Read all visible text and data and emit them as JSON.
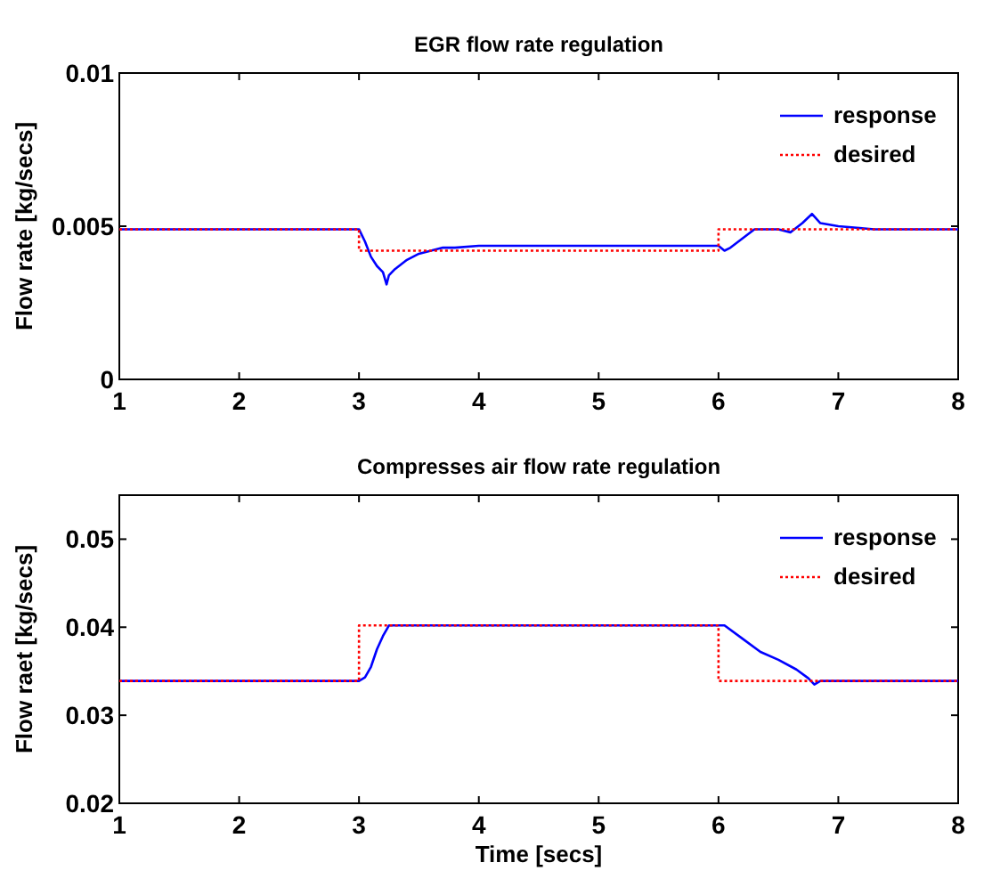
{
  "chart_data": [
    {
      "type": "line",
      "title": "EGR flow rate regulation",
      "ylabel": "Flow rate [kg/secs]",
      "xlim": [
        1,
        8
      ],
      "xticks": [
        1,
        2,
        3,
        4,
        5,
        6,
        7,
        8
      ],
      "ylim": [
        0,
        0.01
      ],
      "yticks": [
        0,
        0.005,
        0.01
      ],
      "grid": false,
      "legend": "top right",
      "series": [
        {
          "name": "response",
          "color": "#0000ff",
          "line_style": "solid",
          "x": [
            1,
            3,
            3.05,
            3.1,
            3.15,
            3.2,
            3.23,
            3.25,
            3.3,
            3.4,
            3.5,
            3.6,
            3.7,
            3.8,
            4,
            6,
            6.05,
            6.1,
            6.2,
            6.3,
            6.5,
            6.6,
            6.7,
            6.78,
            6.85,
            7,
            7.3,
            8
          ],
          "values": [
            0.0049,
            0.0049,
            0.0045,
            0.004,
            0.0037,
            0.0035,
            0.0031,
            0.0034,
            0.0036,
            0.0039,
            0.0041,
            0.0042,
            0.0043,
            0.0043,
            0.00436,
            0.00436,
            0.0042,
            0.0043,
            0.0046,
            0.0049,
            0.0049,
            0.0048,
            0.0051,
            0.0054,
            0.0051,
            0.005,
            0.0049,
            0.0049
          ]
        },
        {
          "name": "desired",
          "color": "#ff0000",
          "line_style": "dotted",
          "x": [
            1,
            3,
            3,
            6,
            6,
            8
          ],
          "values": [
            0.0049,
            0.0049,
            0.0042,
            0.0042,
            0.0049,
            0.0049
          ]
        }
      ]
    },
    {
      "type": "line",
      "title": "Compresses air flow rate regulation",
      "xlabel": "Time [secs]",
      "ylabel": "Flow raet [kg/secs]",
      "xlim": [
        1,
        8
      ],
      "xticks": [
        1,
        2,
        3,
        4,
        5,
        6,
        7,
        8
      ],
      "ylim": [
        0.02,
        0.055
      ],
      "yticks": [
        0.02,
        0.03,
        0.04,
        0.05
      ],
      "grid": false,
      "legend": "top right",
      "series": [
        {
          "name": "response",
          "color": "#0000ff",
          "line_style": "solid",
          "x": [
            1,
            3,
            3.05,
            3.1,
            3.15,
            3.2,
            3.25,
            6,
            6.05,
            6.2,
            6.35,
            6.5,
            6.65,
            6.75,
            6.8,
            6.85,
            8
          ],
          "values": [
            0.0339,
            0.0339,
            0.0343,
            0.0355,
            0.0375,
            0.039,
            0.0402,
            0.0402,
            0.0402,
            0.0387,
            0.0372,
            0.0363,
            0.0352,
            0.0342,
            0.0335,
            0.0339,
            0.0339
          ]
        },
        {
          "name": "desired",
          "color": "#ff0000",
          "line_style": "dotted",
          "x": [
            1,
            3,
            3,
            6,
            6,
            8
          ],
          "values": [
            0.0339,
            0.0339,
            0.0402,
            0.0402,
            0.0339,
            0.0339
          ]
        }
      ]
    }
  ]
}
